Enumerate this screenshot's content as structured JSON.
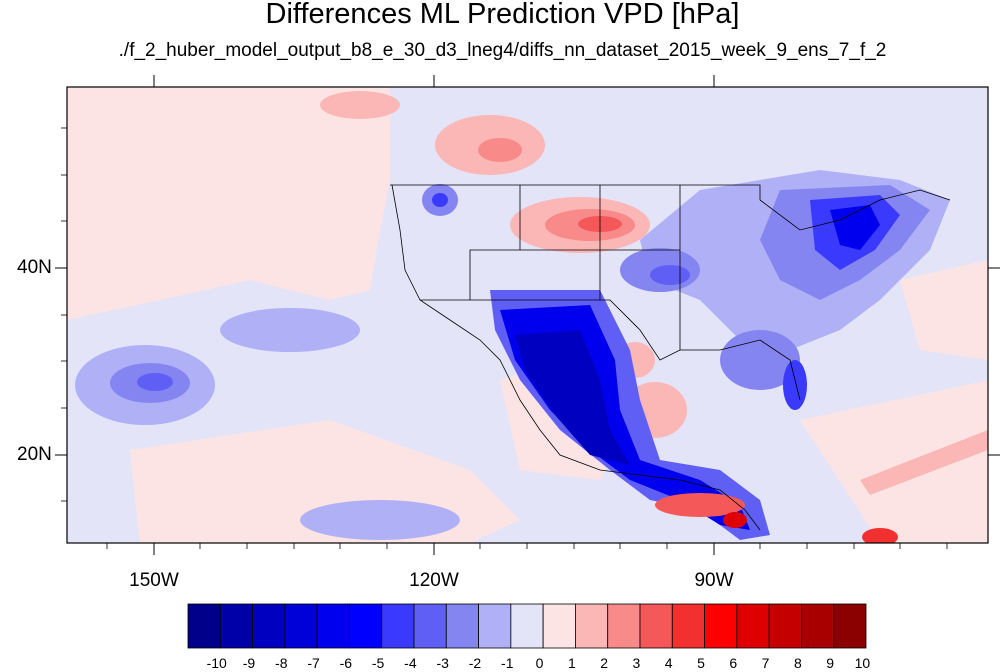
{
  "title": "Differences ML Prediction VPD [hPa]",
  "subtitle": "./f_2_huber_model_output_b8_e_30_d3_lneg4/diffs_nn_dataset_2015_week_9_ens_7_f_2",
  "map": {
    "lon_labels": [
      "150W",
      "120W",
      "90W"
    ],
    "lat_labels": [
      "40N",
      "20N"
    ]
  },
  "colorbar": {
    "labels": [
      "-10",
      "-9",
      "-8",
      "-7",
      "-6",
      "-5",
      "-4",
      "-3",
      "-2",
      "-1",
      "0",
      "1",
      "2",
      "3",
      "4",
      "5",
      "6",
      "7",
      "8",
      "9",
      "10"
    ],
    "colors": [
      "#00008b",
      "#0000a8",
      "#0000c0",
      "#0000d8",
      "#0000ee",
      "#0000ff",
      "#3a3aff",
      "#5f5ff5",
      "#8585f2",
      "#b0b0f6",
      "#e4e4f8",
      "#fde4e4",
      "#fbb6b6",
      "#f88a8a",
      "#f55858",
      "#f33030",
      "#ff0000",
      "#de0000",
      "#c40000",
      "#a80000",
      "#8b0000"
    ]
  }
}
